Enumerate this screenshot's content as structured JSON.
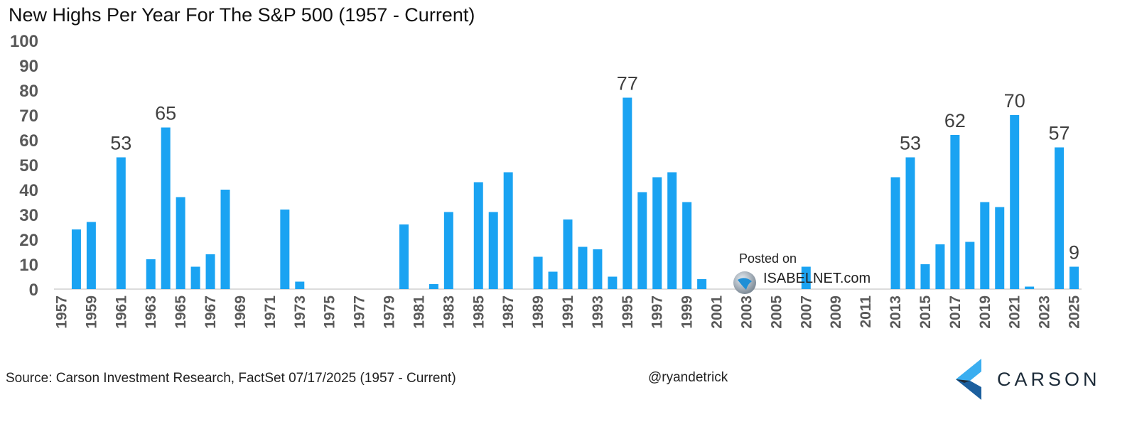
{
  "title": "New Highs Per Year For The S&P 500 (1957 - Current)",
  "source": "Source: Carson Investment Research, FactSet 07/17/2025 (1957 - Current)",
  "handle": "@ryandetrick",
  "watermark": {
    "posted_label": "Posted on",
    "site": "ISABELNET.com",
    "logo_icon": "isabelnet-globe-icon"
  },
  "brand": {
    "name": "CARSON",
    "logo_icon": "carson-chevron-icon",
    "color_light": "#3aaef0",
    "color_dark": "#1c5f9e"
  },
  "colors": {
    "bar": "#1aa3f2",
    "axis": "#d0d0d0"
  },
  "chart_data": {
    "type": "bar",
    "title": "New Highs Per Year For The S&P 500 (1957 - Current)",
    "xlabel": "",
    "ylabel": "",
    "ylim": [
      0,
      100
    ],
    "yticks": [
      0,
      10,
      20,
      30,
      40,
      50,
      60,
      70,
      80,
      90,
      100
    ],
    "categories": [
      1957,
      1958,
      1959,
      1960,
      1961,
      1962,
      1963,
      1964,
      1965,
      1966,
      1967,
      1968,
      1969,
      1970,
      1971,
      1972,
      1973,
      1974,
      1975,
      1976,
      1977,
      1978,
      1979,
      1980,
      1981,
      1982,
      1983,
      1984,
      1985,
      1986,
      1987,
      1988,
      1989,
      1990,
      1991,
      1992,
      1993,
      1994,
      1995,
      1996,
      1997,
      1998,
      1999,
      2000,
      2001,
      2002,
      2003,
      2004,
      2005,
      2006,
      2007,
      2008,
      2009,
      2010,
      2011,
      2012,
      2013,
      2014,
      2015,
      2016,
      2017,
      2018,
      2019,
      2020,
      2021,
      2022,
      2023,
      2024,
      2025
    ],
    "values": [
      0,
      24,
      27,
      0,
      53,
      0,
      12,
      65,
      37,
      9,
      14,
      40,
      0,
      0,
      0,
      32,
      3,
      0,
      0,
      0,
      0,
      0,
      0,
      26,
      0,
      2,
      31,
      0,
      43,
      31,
      47,
      0,
      13,
      7,
      28,
      17,
      16,
      5,
      77,
      39,
      45,
      47,
      35,
      4,
      0,
      0,
      0,
      0,
      0,
      0,
      9,
      0,
      0,
      0,
      0,
      0,
      45,
      53,
      10,
      18,
      62,
      19,
      35,
      33,
      70,
      1,
      0,
      57,
      9
    ],
    "xtick_labels": [
      "1957",
      "1959",
      "1961",
      "1963",
      "1965",
      "1967",
      "1969",
      "1971",
      "1973",
      "1975",
      "1977",
      "1979",
      "1981",
      "1983",
      "1985",
      "1987",
      "1989",
      "1991",
      "1993",
      "1995",
      "1997",
      "1999",
      "2001",
      "2003",
      "2005",
      "2007",
      "2009",
      "2011",
      "2013",
      "2015",
      "2017",
      "2019",
      "2021",
      "2023",
      "2025"
    ],
    "data_labels": [
      {
        "year": 1961,
        "text": "53"
      },
      {
        "year": 1964,
        "text": "65"
      },
      {
        "year": 1995,
        "text": "77"
      },
      {
        "year": 2014,
        "text": "53"
      },
      {
        "year": 2017,
        "text": "62"
      },
      {
        "year": 2021,
        "text": "70"
      },
      {
        "year": 2024,
        "text": "57"
      },
      {
        "year": 2025,
        "text": "9"
      }
    ],
    "grid": false,
    "legend": "none"
  }
}
